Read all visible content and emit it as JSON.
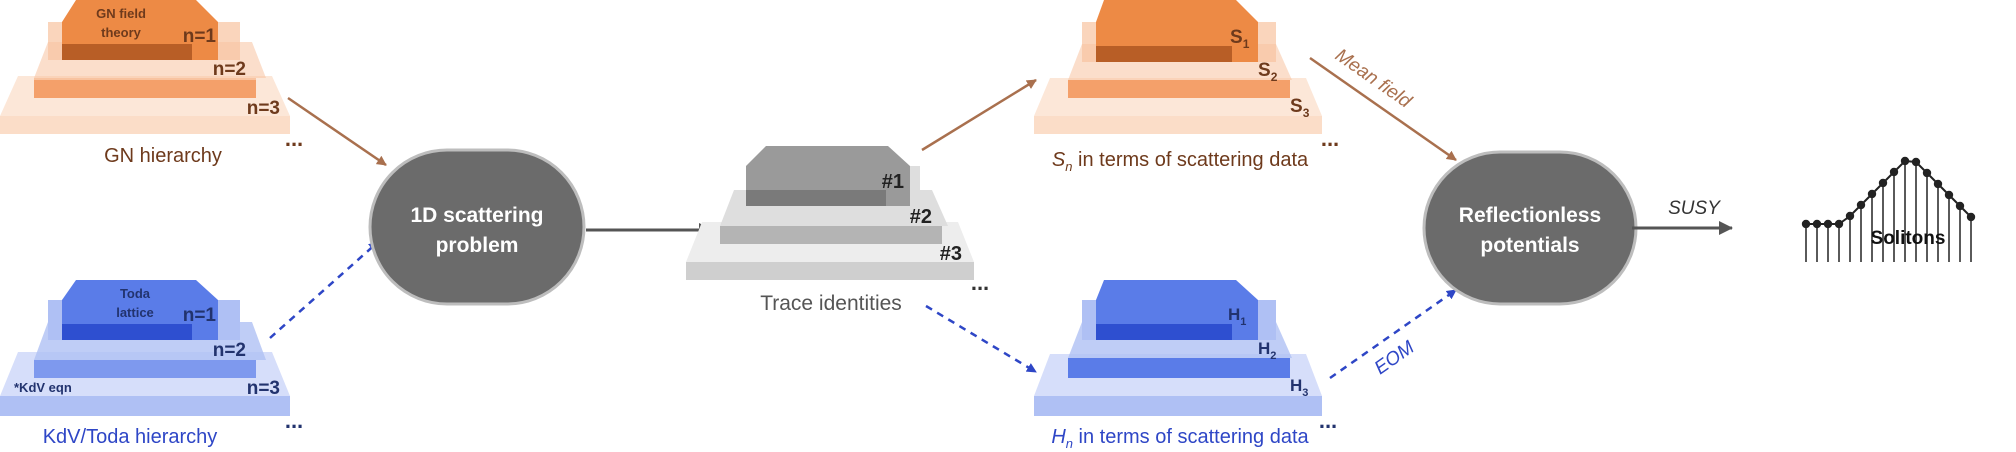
{
  "colors": {
    "orange_top": "#ED8A45",
    "orange_top_shadow": "#B85E26",
    "orange_2": "#F4A06A",
    "orange_3": "#F8C3A0",
    "orange_4": "#FBDDC8",
    "brown_text": "#6E3A1C",
    "brown_arrow": "#A9704E",
    "blue_top": "#5A7CE8",
    "blue_top_shadow": "#2E4FD0",
    "blue_2": "#7E99EE",
    "blue_3": "#AFC0F4",
    "blue_4": "#D6DEFA",
    "blue_text": "#2E46C6",
    "navy_text": "#22336E",
    "gray_top": "#9A9A9A",
    "gray_top_shadow": "#7A7A7A",
    "gray_2": "#B4B4B4",
    "gray_3": "#D0D0D0",
    "gray_4": "#E6E6E6",
    "gray_text": "#555555",
    "node_fill": "#6B6B6B",
    "node_stroke": "#BDBDBD",
    "dark_arrow": "#555555"
  },
  "gn": {
    "top_label": [
      "GN field",
      "theory"
    ],
    "levels": [
      "n=1",
      "n=2",
      "n=3"
    ],
    "dots": "...",
    "caption": "GN hierarchy"
  },
  "kdv": {
    "top_label": [
      "Toda",
      "lattice"
    ],
    "levels": [
      "n=1",
      "n=2",
      "n=3"
    ],
    "side_note": "*KdV eqn",
    "dots": "...",
    "caption": "KdV/Toda hierarchy"
  },
  "scattering_node": [
    "1D scattering",
    "problem"
  ],
  "trace": {
    "levels": [
      "#1",
      "#2",
      "#3"
    ],
    "dots": "...",
    "caption": "Trace identities"
  },
  "sn": {
    "levels": [
      {
        "base": "S",
        "sub": "1"
      },
      {
        "base": "S",
        "sub": "2"
      },
      {
        "base": "S",
        "sub": "3"
      }
    ],
    "dots": "...",
    "caption": {
      "base": "S",
      "sub": "n",
      "rest": " in terms of scattering data"
    }
  },
  "hn": {
    "levels": [
      {
        "base": "H",
        "sub": "1"
      },
      {
        "base": "H",
        "sub": "2"
      },
      {
        "base": "H",
        "sub": "3"
      }
    ],
    "dots": "...",
    "caption": {
      "base": "H",
      "sub": "n",
      "rest": " in terms of scattering data"
    }
  },
  "reflectionless_node": [
    "Reflectionless",
    "potentials"
  ],
  "arrow_labels": {
    "mean_field": "Mean field",
    "eom": "EOM",
    "susy": "SUSY"
  },
  "solitons_label": "Solitons"
}
